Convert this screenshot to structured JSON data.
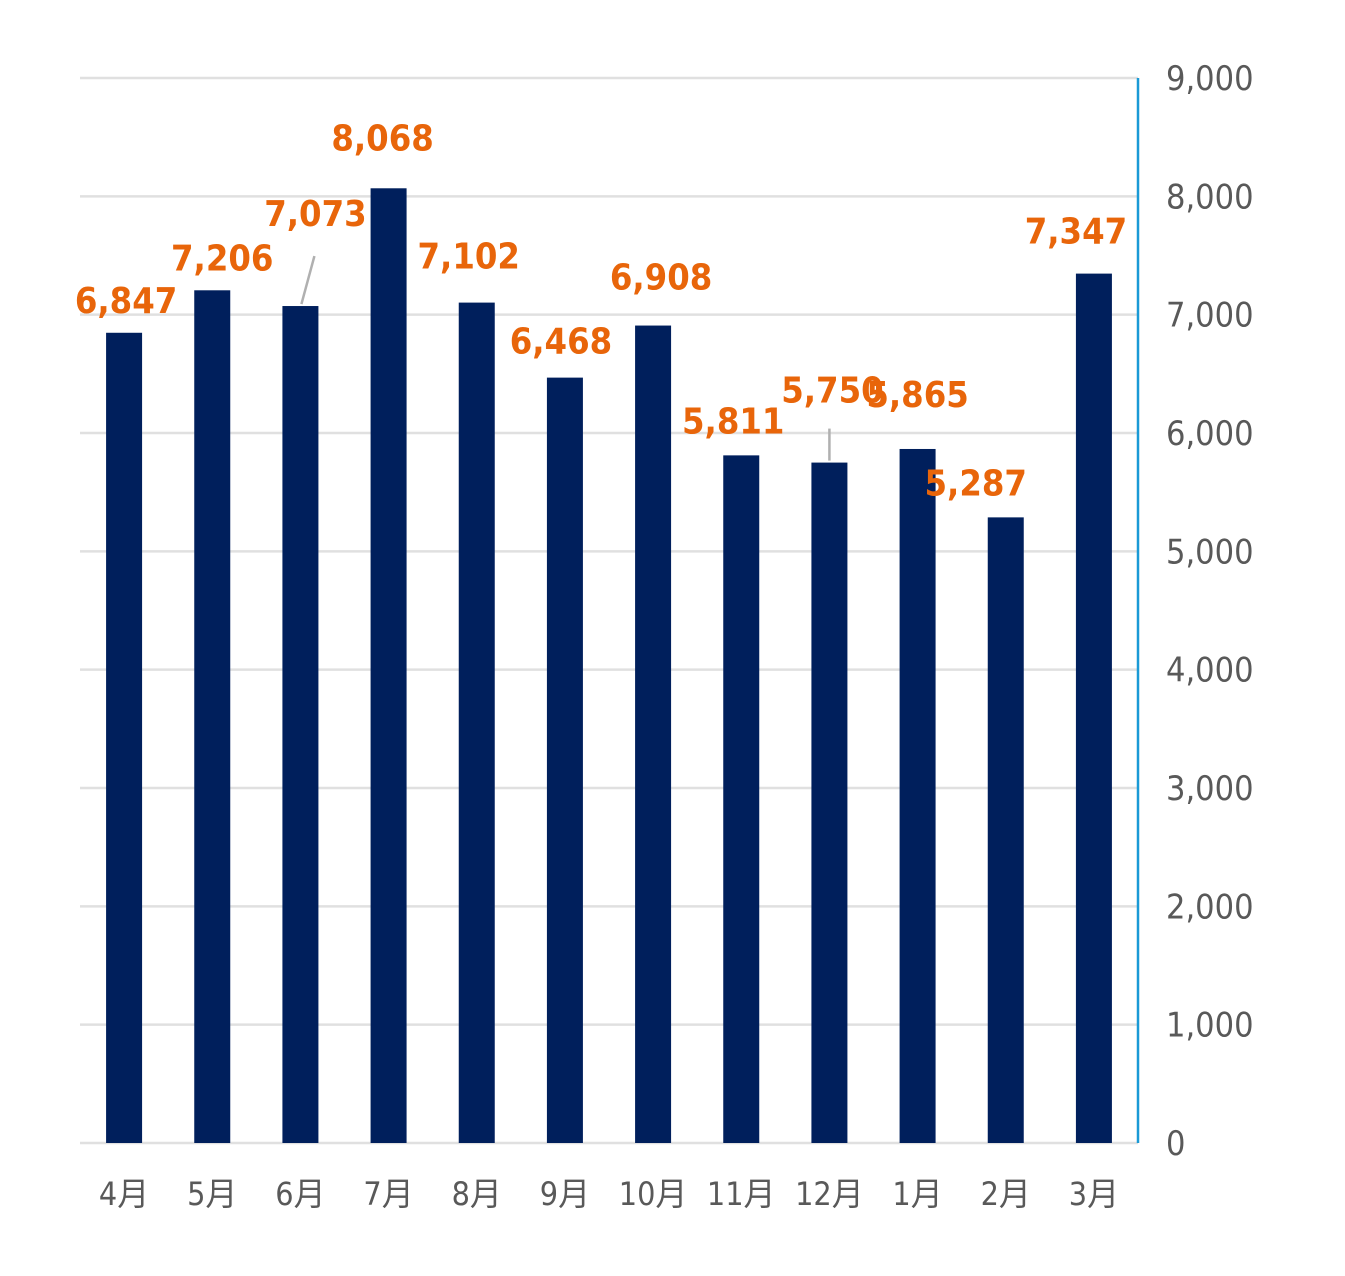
{
  "chart_data": {
    "type": "bar",
    "title": "",
    "xlabel": "",
    "ylabel": "",
    "categories": [
      "4月",
      "5月",
      "6月",
      "7月",
      "8月",
      "9月",
      "10月",
      "11月",
      "12月",
      "1月",
      "2月",
      "3月"
    ],
    "values": [
      6847,
      7206,
      7073,
      8068,
      7102,
      6468,
      6908,
      5811,
      5750,
      5865,
      5287,
      7347
    ],
    "value_labels": [
      "6,847",
      "7,206",
      "7,073",
      "8,068",
      "7,102",
      "6,468",
      "6,908",
      "5,811",
      "5,750",
      "5,865",
      "5,287",
      "7,347"
    ],
    "ylim": [
      0,
      9000
    ],
    "yticks": [
      0,
      1000,
      2000,
      3000,
      4000,
      5000,
      6000,
      7000,
      8000,
      9000
    ],
    "ytick_labels": [
      "0",
      "1,000",
      "2,000",
      "3,000",
      "4,000",
      "5,000",
      "6,000",
      "7,000",
      "8,000",
      "9,000"
    ],
    "y_axis_side": "right",
    "grid": true,
    "colors": {
      "bar": "#001f5c",
      "label": "#e8650a",
      "axis": "#1a9ad6",
      "grid": "#e0e0e0"
    }
  }
}
